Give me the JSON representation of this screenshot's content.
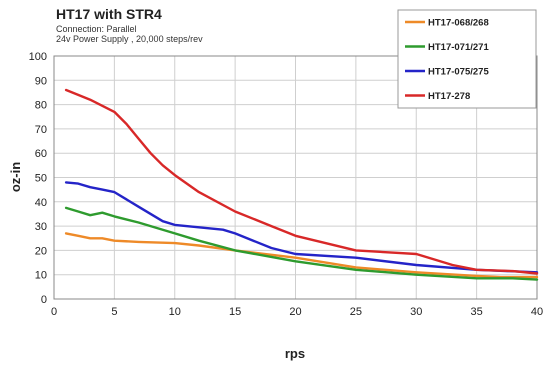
{
  "chart_data": {
    "type": "line",
    "title": "HT17 with STR4",
    "subtitle_lines": [
      "Connection: Parallel",
      "24v Power Supply , 20,000 steps/rev"
    ],
    "xlabel": "rps",
    "ylabel": "oz-in",
    "xlim": [
      0,
      40
    ],
    "ylim": [
      0,
      100
    ],
    "xticks": [
      0,
      5,
      10,
      15,
      20,
      25,
      30,
      35,
      40
    ],
    "yticks": [
      0,
      10,
      20,
      30,
      40,
      50,
      60,
      70,
      80,
      90,
      100
    ],
    "grid": true,
    "legend_position": "top-right",
    "series": [
      {
        "name": "HT17-068/268",
        "color": "#ee8a28",
        "points": [
          [
            1,
            27
          ],
          [
            2,
            26
          ],
          [
            3,
            25
          ],
          [
            4,
            25
          ],
          [
            5,
            24
          ],
          [
            7,
            23.5
          ],
          [
            10,
            23
          ],
          [
            12,
            22
          ],
          [
            15,
            20
          ],
          [
            20,
            17
          ],
          [
            25,
            13
          ],
          [
            30,
            11
          ],
          [
            35,
            9.5
          ],
          [
            37,
            9
          ],
          [
            40,
            9
          ]
        ]
      },
      {
        "name": "HT17-071/271",
        "color": "#2e9b2e",
        "points": [
          [
            1,
            37.5
          ],
          [
            2,
            36
          ],
          [
            3,
            34.5
          ],
          [
            4,
            35.5
          ],
          [
            5,
            34
          ],
          [
            7,
            31.5
          ],
          [
            10,
            27
          ],
          [
            12,
            24
          ],
          [
            15,
            20
          ],
          [
            20,
            15.5
          ],
          [
            25,
            12
          ],
          [
            30,
            10
          ],
          [
            35,
            8.5
          ],
          [
            38,
            8.5
          ],
          [
            40,
            8
          ]
        ]
      },
      {
        "name": "HT17-075/275",
        "color": "#2424c8",
        "points": [
          [
            1,
            48
          ],
          [
            2,
            47.5
          ],
          [
            3,
            46
          ],
          [
            4,
            45
          ],
          [
            5,
            44
          ],
          [
            7,
            38
          ],
          [
            9,
            32
          ],
          [
            10,
            30.5
          ],
          [
            12,
            29.5
          ],
          [
            14,
            28.5
          ],
          [
            15,
            27
          ],
          [
            18,
            21
          ],
          [
            20,
            18.5
          ],
          [
            25,
            17
          ],
          [
            30,
            14
          ],
          [
            35,
            12
          ],
          [
            40,
            11
          ]
        ]
      },
      {
        "name": "HT17-278",
        "color": "#d82828",
        "points": [
          [
            1,
            86
          ],
          [
            2,
            84
          ],
          [
            3,
            82
          ],
          [
            4,
            79.5
          ],
          [
            5,
            77
          ],
          [
            6,
            72
          ],
          [
            7,
            66
          ],
          [
            8,
            60
          ],
          [
            9,
            55
          ],
          [
            10,
            51
          ],
          [
            12,
            44
          ],
          [
            15,
            36
          ],
          [
            18,
            30
          ],
          [
            20,
            26
          ],
          [
            25,
            20
          ],
          [
            30,
            18.5
          ],
          [
            33,
            14
          ],
          [
            35,
            12
          ],
          [
            38,
            11.5
          ],
          [
            40,
            10.5
          ]
        ]
      }
    ]
  }
}
